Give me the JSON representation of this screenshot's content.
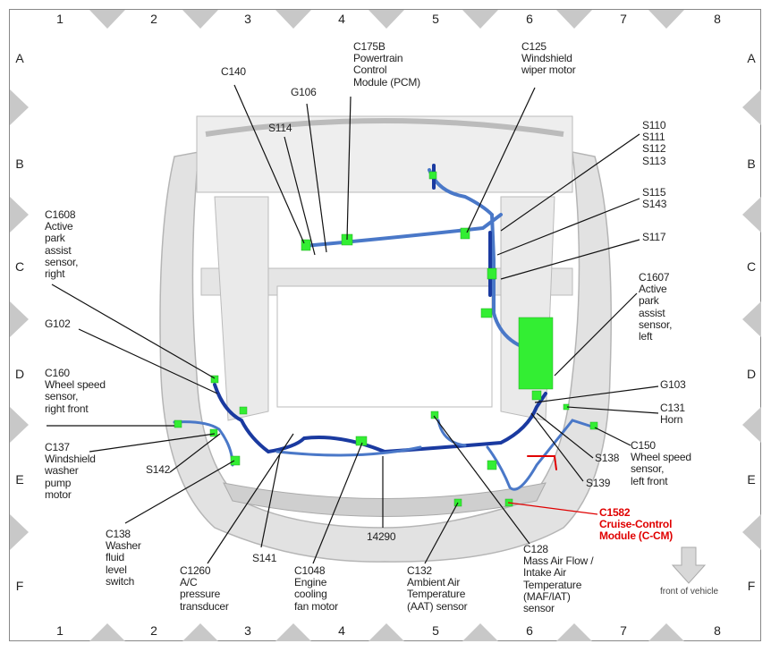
{
  "grid": {
    "columns": [
      "1",
      "2",
      "3",
      "4",
      "5",
      "6",
      "7",
      "8"
    ],
    "rows": [
      "A",
      "B",
      "C",
      "D",
      "E",
      "F"
    ]
  },
  "colors": {
    "harness": "#4a78c8",
    "harness_dark": "#1a3aa0",
    "connector": "#33ee33",
    "highlight": "#e00000",
    "body": "#d9d9d9"
  },
  "labels": {
    "c140": "C140",
    "g106": "G106",
    "c175b": "C175B\nPowertrain\nControl\nModule (PCM)",
    "s114": "S114",
    "c125": "C125\nWindshield\nwiper motor",
    "s110": "S110\nS111\nS112\nS113",
    "s115": "S115\nS143",
    "s117": "S117",
    "c1607": "C1607\nActive\npark\nassist\nsensor,\nleft",
    "c1608": "C1608\nActive\npark\nassist\nsensor,\nright",
    "g102": "G102",
    "c160": "C160\nWheel speed\nsensor,\nright front",
    "c137": "C137\nWindshield\nwasher\npump\nmotor",
    "s142": "S142",
    "c138": "C138\nWasher\nfluid\nlevel\nswitch",
    "c1260": "C1260\nA/C\npressure\ntransducer",
    "s141": "S141",
    "c1048": "C1048\nEngine\ncooling\nfan motor",
    "h14290": "14290",
    "c132": "C132\nAmbient Air\nTemperature\n(AAT) sensor",
    "c128": "C128\nMass Air Flow /\nIntake Air\nTemperature\n(MAF/IAT)\nsensor",
    "c1582": "C1582\nCruise-Control\nModule (C-CM)",
    "g103": "G103",
    "c131": "C131\nHorn",
    "c150": "C150\nWheel speed\nsensor,\nleft front",
    "s138": "S138",
    "s139": "S139"
  },
  "front_indicator": {
    "label": "front of vehicle",
    "icon": "arrow-down-icon"
  }
}
